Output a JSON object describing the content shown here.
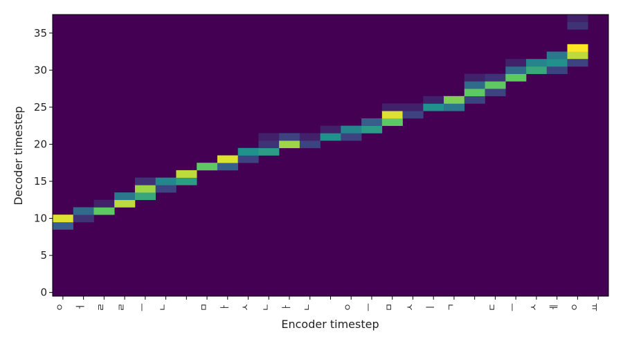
{
  "chart_data": {
    "type": "heatmap",
    "xlabel": "Encoder timestep",
    "ylabel": "Decoder timestep",
    "x_tick_labels": [
      "ㅇ",
      "ㅓ",
      "ㄹ",
      "ㄹ",
      "ㅡ",
      "ㄴ",
      " ",
      "ㅁ",
      "ㅏ",
      "ㅅ",
      "ㄴ",
      "ㅏ",
      "ㄴ",
      " ",
      "ㅇ",
      "ㅡ",
      "ㅁ",
      "ㅅ",
      "ㅣ",
      "ㄱ",
      " ",
      "ㄷ",
      "ㅡ",
      "ㅅ",
      "ㅔ",
      "ㅇ",
      "ㅛ"
    ],
    "y_ticks": [
      0,
      5,
      10,
      15,
      20,
      25,
      30,
      35
    ],
    "n_decoder_steps": 38,
    "colormap": "viridis",
    "value_range": [
      0,
      1
    ],
    "grid": false,
    "alignment": [
      {
        "x": 0,
        "y": 9,
        "value": 0.3
      },
      {
        "x": 0,
        "y": 10,
        "value": 0.95
      },
      {
        "x": 1,
        "y": 10,
        "value": 0.15
      },
      {
        "x": 1,
        "y": 11,
        "value": 0.35
      },
      {
        "x": 2,
        "y": 11,
        "value": 0.75
      },
      {
        "x": 2,
        "y": 12,
        "value": 0.1
      },
      {
        "x": 3,
        "y": 12,
        "value": 0.9
      },
      {
        "x": 3,
        "y": 13,
        "value": 0.4
      },
      {
        "x": 4,
        "y": 13,
        "value": 0.6
      },
      {
        "x": 4,
        "y": 14,
        "value": 0.85
      },
      {
        "x": 4,
        "y": 15,
        "value": 0.15
      },
      {
        "x": 5,
        "y": 14,
        "value": 0.2
      },
      {
        "x": 5,
        "y": 15,
        "value": 0.45
      },
      {
        "x": 6,
        "y": 15,
        "value": 0.55
      },
      {
        "x": 6,
        "y": 16,
        "value": 0.9
      },
      {
        "x": 7,
        "y": 17,
        "value": 0.75
      },
      {
        "x": 8,
        "y": 17,
        "value": 0.3
      },
      {
        "x": 8,
        "y": 18,
        "value": 0.95
      },
      {
        "x": 9,
        "y": 18,
        "value": 0.2
      },
      {
        "x": 9,
        "y": 19,
        "value": 0.5
      },
      {
        "x": 10,
        "y": 19,
        "value": 0.55
      },
      {
        "x": 10,
        "y": 20,
        "value": 0.15
      },
      {
        "x": 10,
        "y": 21,
        "value": 0.1
      },
      {
        "x": 11,
        "y": 20,
        "value": 0.85
      },
      {
        "x": 11,
        "y": 21,
        "value": 0.2
      },
      {
        "x": 12,
        "y": 20,
        "value": 0.2
      },
      {
        "x": 12,
        "y": 21,
        "value": 0.1
      },
      {
        "x": 13,
        "y": 21,
        "value": 0.5
      },
      {
        "x": 13,
        "y": 22,
        "value": 0.1
      },
      {
        "x": 14,
        "y": 21,
        "value": 0.2
      },
      {
        "x": 14,
        "y": 22,
        "value": 0.45
      },
      {
        "x": 15,
        "y": 22,
        "value": 0.55
      },
      {
        "x": 15,
        "y": 23,
        "value": 0.3
      },
      {
        "x": 16,
        "y": 23,
        "value": 0.75
      },
      {
        "x": 16,
        "y": 24,
        "value": 0.95
      },
      {
        "x": 16,
        "y": 25,
        "value": 0.1
      },
      {
        "x": 17,
        "y": 24,
        "value": 0.2
      },
      {
        "x": 17,
        "y": 25,
        "value": 0.1
      },
      {
        "x": 18,
        "y": 25,
        "value": 0.5
      },
      {
        "x": 18,
        "y": 26,
        "value": 0.1
      },
      {
        "x": 19,
        "y": 25,
        "value": 0.4
      },
      {
        "x": 19,
        "y": 26,
        "value": 0.8
      },
      {
        "x": 20,
        "y": 26,
        "value": 0.2
      },
      {
        "x": 20,
        "y": 27,
        "value": 0.75
      },
      {
        "x": 20,
        "y": 28,
        "value": 0.35
      },
      {
        "x": 20,
        "y": 29,
        "value": 0.1
      },
      {
        "x": 21,
        "y": 27,
        "value": 0.2
      },
      {
        "x": 21,
        "y": 28,
        "value": 0.75
      },
      {
        "x": 21,
        "y": 29,
        "value": 0.15
      },
      {
        "x": 22,
        "y": 29,
        "value": 0.75
      },
      {
        "x": 22,
        "y": 30,
        "value": 0.35
      },
      {
        "x": 22,
        "y": 31,
        "value": 0.1
      },
      {
        "x": 23,
        "y": 30,
        "value": 0.6
      },
      {
        "x": 23,
        "y": 31,
        "value": 0.45
      },
      {
        "x": 24,
        "y": 30,
        "value": 0.2
      },
      {
        "x": 24,
        "y": 31,
        "value": 0.5
      },
      {
        "x": 24,
        "y": 32,
        "value": 0.4
      },
      {
        "x": 25,
        "y": 32,
        "value": 0.9
      },
      {
        "x": 25,
        "y": 33,
        "value": 1.0
      },
      {
        "x": 25,
        "y": 31,
        "value": 0.2
      },
      {
        "x": 25,
        "y": 36,
        "value": 0.15
      },
      {
        "x": 25,
        "y": 37,
        "value": 0.1
      }
    ]
  }
}
